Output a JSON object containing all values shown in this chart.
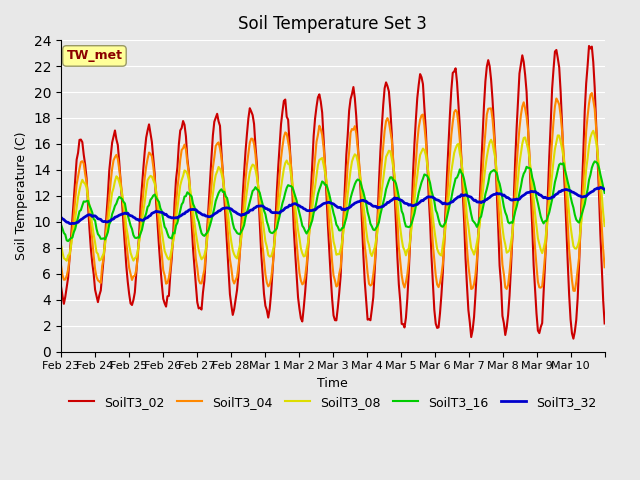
{
  "title": "Soil Temperature Set 3",
  "xlabel": "Time",
  "ylabel": "Soil Temperature (C)",
  "ylim": [
    0,
    24
  ],
  "yticks": [
    0,
    2,
    4,
    6,
    8,
    10,
    12,
    14,
    16,
    18,
    20,
    22,
    24
  ],
  "background_color": "#e8e8e8",
  "annotation_text": "TW_met",
  "annotation_color": "#8b0000",
  "annotation_bg": "#ffff99",
  "series": {
    "SoilT3_02": {
      "color": "#cc0000",
      "lw": 1.5
    },
    "SoilT3_04": {
      "color": "#ff8800",
      "lw": 1.5
    },
    "SoilT3_08": {
      "color": "#dddd00",
      "lw": 1.5
    },
    "SoilT3_16": {
      "color": "#00cc00",
      "lw": 1.5
    },
    "SoilT3_32": {
      "color": "#0000cc",
      "lw": 2.0
    }
  },
  "xtick_positions": [
    0,
    1,
    2,
    3,
    4,
    5,
    6,
    7,
    8,
    9,
    10,
    11,
    12,
    13,
    14,
    15,
    16
  ],
  "xtick_labels": [
    "Feb 23",
    "Feb 24",
    "Feb 25",
    "Feb 26",
    "Feb 27",
    "Feb 28",
    "Mar 1",
    "Mar 2",
    "Mar 3",
    "Mar 4",
    "Mar 5",
    "Mar 6",
    "Mar 7",
    "Mar 8",
    "Mar 9",
    "Mar 10",
    ""
  ],
  "n_points": 384
}
